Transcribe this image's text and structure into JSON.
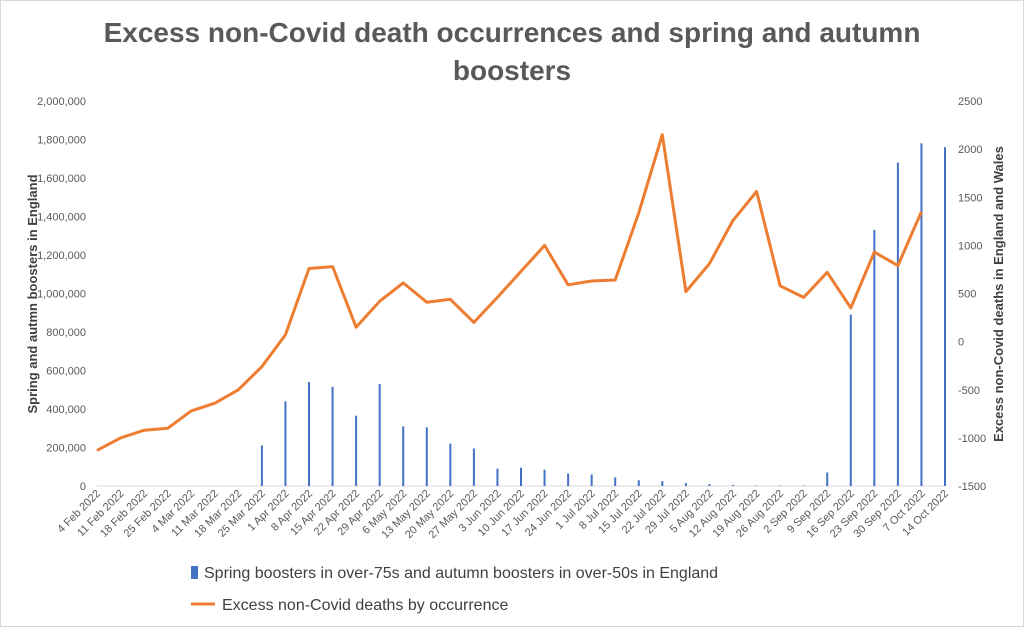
{
  "chart_data": {
    "type": "bar+line",
    "title_line1": "Excess non-Covid death occurrences and spring and autumn",
    "title_line2": "boosters",
    "ylabel_left": "Spring and autmn boosters in England",
    "ylabel_right": "Excess non-Covid deaths in England  and Wales",
    "ylim_left": [
      0,
      2000000
    ],
    "ylim_right": [
      -1500,
      2500
    ],
    "left_ticks": [
      "0",
      "200,000",
      "400,000",
      "600,000",
      "800,000",
      "1,000,000",
      "1,200,000",
      "1,400,000",
      "1,600,000",
      "1,800,000",
      "2,000,000"
    ],
    "right_ticks": [
      "-1500",
      "-1000",
      "-500",
      "0",
      "500",
      "1000",
      "1500",
      "2000",
      "2500"
    ],
    "categories": [
      "4 Feb 2022",
      "11 Feb 2022",
      "18 Feb 2022",
      "25 Feb 2022",
      "4 Mar 2022",
      "11 Mar 2022",
      "18 Mar 2022",
      "25 Mar 2022",
      "1 Apr 2022",
      "8 Apr 2022",
      "15 Apr 2022",
      "22 Apr 2022",
      "29 Apr 2022",
      "6 May 2022",
      "13 May 2022",
      "20 May 2022",
      "27 May 2022",
      "3 Jun 2022",
      "10 Jun 2022",
      "17 Jun 2022",
      "24 Jun 2022",
      "1 Jul 2022",
      "8 Jul 2022",
      "15 Jul 2022",
      "22 Jul 2022",
      "29 Jul 2022",
      "5 Aug 2022",
      "12 Aug 2022",
      "19 Aug 2022",
      "26 Aug 2022",
      "2 Sep 2022",
      "9 Sep 2022",
      "16 Sep 2022",
      "23 Sep 2022",
      "30 Sep 2022",
      "7 Oct 2022",
      "14 Oct 2022"
    ],
    "series": [
      {
        "name": "Spring boosters in over-75s and autumn boosters in over-50s in England",
        "type": "bar",
        "axis": "left",
        "color": "#4472c4",
        "values": [
          0,
          0,
          0,
          0,
          0,
          0,
          0,
          210000,
          440000,
          540000,
          515000,
          365000,
          530000,
          310000,
          305000,
          220000,
          195000,
          90000,
          95000,
          85000,
          65000,
          60000,
          45000,
          30000,
          25000,
          15000,
          10000,
          5000,
          3000,
          2000,
          3000,
          70000,
          890000,
          1330000,
          1680000,
          1780000,
          1760000
        ]
      },
      {
        "name": "Excess non-Covid deaths by occurrence",
        "type": "line",
        "axis": "right",
        "color": "#ed7d31",
        "values": [
          -1130,
          -1000,
          -920,
          -900,
          -720,
          -640,
          -500,
          -260,
          70,
          760,
          780,
          150,
          420,
          610,
          410,
          440,
          200,
          460,
          730,
          1000,
          590,
          630,
          640,
          1340,
          2150,
          520,
          810,
          1260,
          1560,
          580,
          460,
          720,
          350,
          930,
          790,
          1350,
          null
        ]
      }
    ],
    "legend_position": "bottom",
    "grid": false
  }
}
